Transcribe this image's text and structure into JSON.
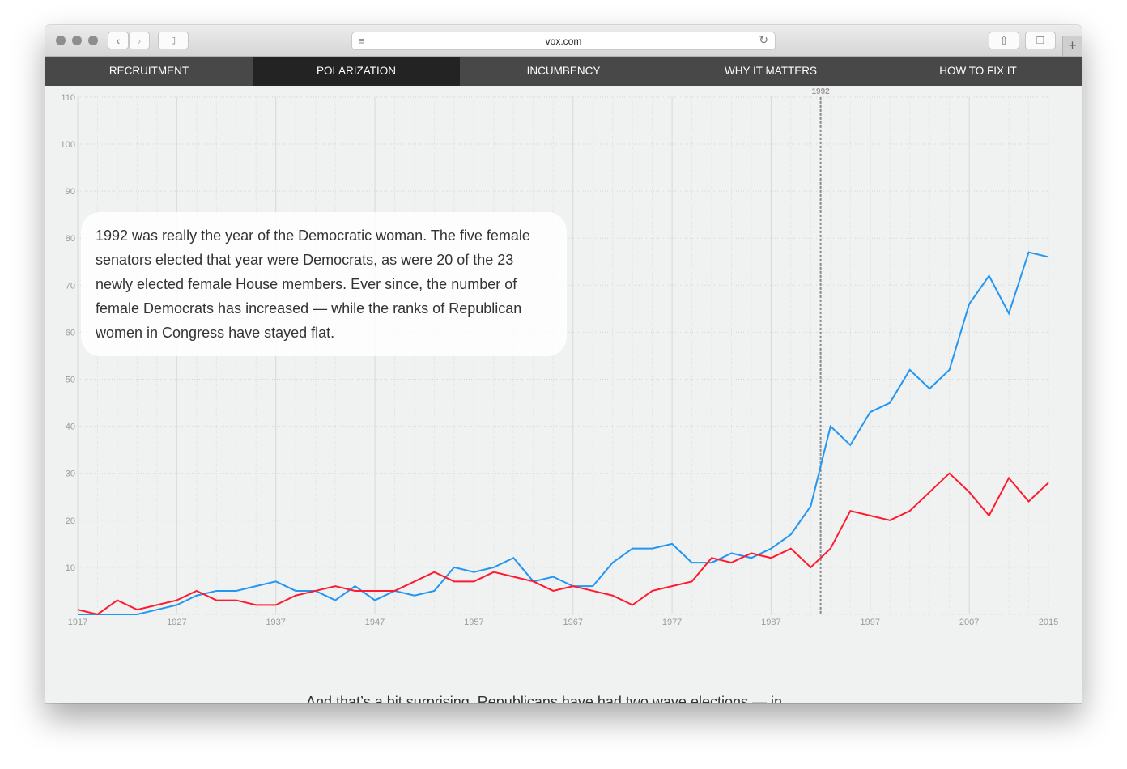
{
  "browser": {
    "url": "vox.com",
    "icons": [
      "close-light",
      "minimize-light",
      "zoom-light",
      "back-icon",
      "forward-icon",
      "sidebar-icon",
      "reader-icon",
      "reload-icon",
      "share-icon",
      "tabs-icon",
      "new-tab-icon"
    ]
  },
  "nav": {
    "items": [
      {
        "label": "RECRUITMENT"
      },
      {
        "label": "POLARIZATION",
        "active": true
      },
      {
        "label": "INCUMBENCY"
      },
      {
        "label": "WHY IT MATTERS"
      },
      {
        "label": "HOW TO FIX IT"
      }
    ]
  },
  "callout": {
    "text": "1992 was really the year of the Democratic woman. The five female senators elected that year were Democrats, as were 20 of the 23 newly elected female House members. Ever since, the number of female Democrats has increased — while the ranks of Republican women in Congress have stayed flat."
  },
  "body_text": "And that’s a bit surprising. Republicans have had two wave elections — in",
  "chart_data": {
    "type": "line",
    "x": [
      1917,
      1919,
      1921,
      1923,
      1925,
      1927,
      1929,
      1931,
      1933,
      1935,
      1937,
      1939,
      1941,
      1943,
      1945,
      1947,
      1949,
      1951,
      1953,
      1955,
      1957,
      1959,
      1961,
      1963,
      1965,
      1967,
      1969,
      1971,
      1973,
      1975,
      1977,
      1979,
      1981,
      1983,
      1985,
      1987,
      1989,
      1991,
      1993,
      1995,
      1997,
      1999,
      2001,
      2003,
      2005,
      2007,
      2009,
      2011,
      2013,
      2015
    ],
    "series": [
      {
        "color": "#2196f3",
        "values": [
          0,
          0,
          0,
          0,
          1,
          2,
          4,
          5,
          5,
          6,
          7,
          5,
          5,
          3,
          6,
          3,
          5,
          4,
          5,
          10,
          9,
          10,
          12,
          7,
          8,
          6,
          6,
          11,
          14,
          14,
          15,
          11,
          11,
          13,
          12,
          14,
          17,
          23,
          40,
          36,
          43,
          45,
          52,
          48,
          52,
          66,
          72,
          64,
          77,
          76
        ]
      },
      {
        "color": "#ff1a2e",
        "values": [
          1,
          0,
          3,
          1,
          2,
          3,
          5,
          3,
          3,
          2,
          2,
          4,
          5,
          6,
          5,
          5,
          5,
          7,
          9,
          7,
          7,
          9,
          8,
          7,
          5,
          6,
          5,
          4,
          2,
          5,
          6,
          7,
          12,
          11,
          13,
          12,
          14,
          10,
          14,
          22,
          21,
          20,
          22,
          26,
          30,
          26,
          21,
          29,
          24,
          28
        ]
      }
    ],
    "x_ticks": [
      "1917",
      "1927",
      "1937",
      "1947",
      "1957",
      "1967",
      "1977",
      "1987",
      "1997",
      "2007",
      "2015"
    ],
    "y_ticks": [
      "10",
      "20",
      "30",
      "40",
      "50",
      "60",
      "70",
      "80",
      "90",
      "100",
      "110"
    ],
    "xlim": [
      1917,
      2015
    ],
    "ylim": [
      0,
      110
    ],
    "grid": true,
    "annotation": {
      "x": 1992,
      "label": "1992",
      "style": "dashed vertical line"
    }
  }
}
